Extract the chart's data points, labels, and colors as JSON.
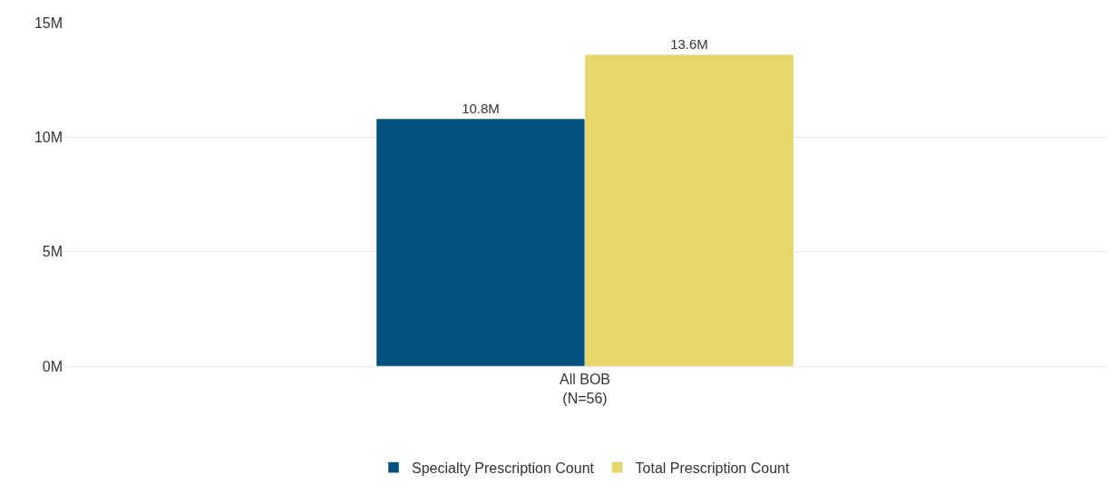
{
  "chart_data": {
    "type": "bar",
    "categories": [
      "All BOB\n(N=56)"
    ],
    "series": [
      {
        "name": "Specialty Prescription Count",
        "color": "#02507f",
        "values": [
          10.8
        ],
        "value_labels": [
          "10.8M"
        ]
      },
      {
        "name": "Total Prescription Count",
        "color": "#e9d66b",
        "values": [
          13.6
        ],
        "value_labels": [
          "13.6M"
        ]
      }
    ],
    "ylim": [
      0,
      15
    ],
    "yticks": [
      {
        "value": 0,
        "label": "0M"
      },
      {
        "value": 5,
        "label": "5M"
      },
      {
        "value": 10,
        "label": "10M"
      },
      {
        "value": 15,
        "label": "15M"
      }
    ],
    "grid": "y",
    "legend": "bottom"
  }
}
